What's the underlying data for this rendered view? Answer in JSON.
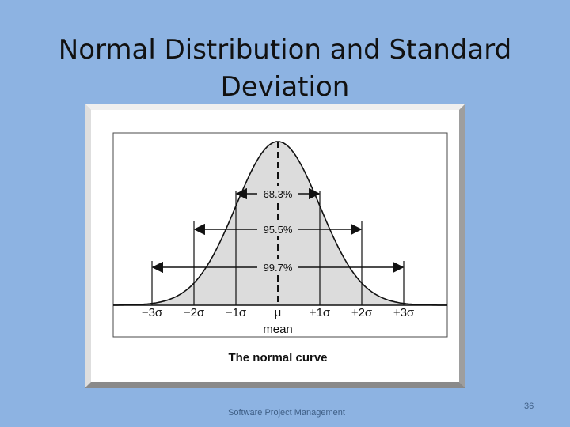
{
  "slide": {
    "title_line1": "Normal Distribution and Standard",
    "title_line2": "Deviation",
    "footer": "Software Project Management",
    "page_number": "36"
  },
  "figure": {
    "caption": "The normal curve",
    "ranges": [
      {
        "label": "68.3%",
        "from_sigma": -1,
        "to_sigma": 1
      },
      {
        "label": "95.5%",
        "from_sigma": -2,
        "to_sigma": 2
      },
      {
        "label": "99.7%",
        "from_sigma": -3,
        "to_sigma": 3
      }
    ],
    "ticks": [
      {
        "sigma": -3,
        "label": "−3σ"
      },
      {
        "sigma": -2,
        "label": "−2σ"
      },
      {
        "sigma": -1,
        "label": "−1σ"
      },
      {
        "sigma": 0,
        "label": "μ"
      },
      {
        "sigma": 1,
        "label": "+1σ"
      },
      {
        "sigma": 2,
        "label": "+2σ"
      },
      {
        "sigma": 3,
        "label": "+3σ"
      }
    ],
    "mean_label": "mean"
  },
  "colors": {
    "background": "#8db3e2",
    "curve_fill": "#dcdcdc",
    "line": "#111111"
  }
}
